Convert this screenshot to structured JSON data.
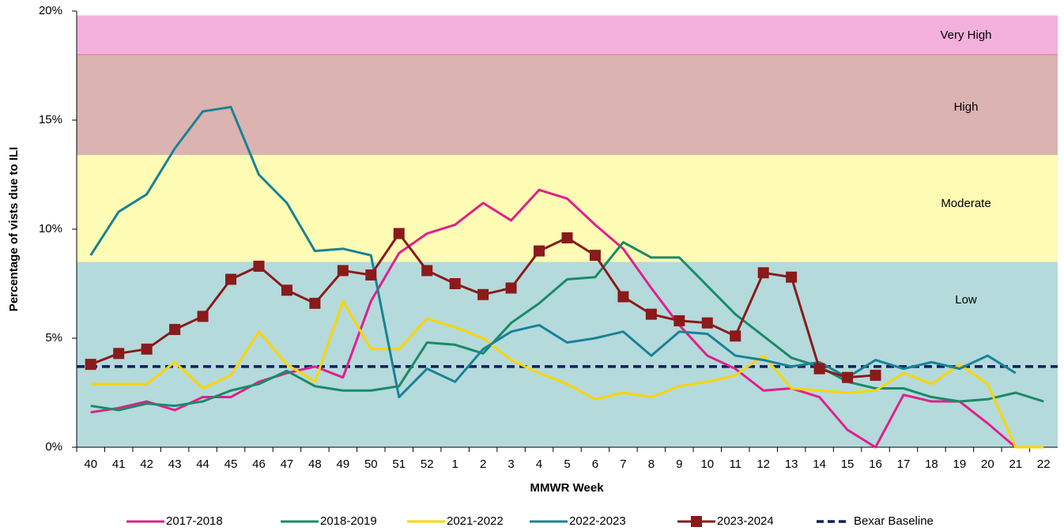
{
  "chart_data": {
    "type": "line",
    "x_label": "MMWR Week",
    "y_label": "Percentage of vists due to ILI",
    "categories": [
      "40",
      "41",
      "42",
      "43",
      "44",
      "45",
      "46",
      "47",
      "48",
      "49",
      "50",
      "51",
      "52",
      "1",
      "2",
      "3",
      "4",
      "5",
      "6",
      "7",
      "8",
      "9",
      "10",
      "11",
      "12",
      "13",
      "14",
      "15",
      "16",
      "17",
      "18",
      "19",
      "20",
      "21",
      "22"
    ],
    "ylim": [
      0,
      20
    ],
    "yticks": [
      {
        "value": 0,
        "label": "0%"
      },
      {
        "value": 5,
        "label": "5%"
      },
      {
        "value": 10,
        "label": "10%"
      },
      {
        "value": 15,
        "label": "15%"
      },
      {
        "value": 20,
        "label": "20%"
      }
    ],
    "grid": false,
    "legend": "bottom",
    "bands": [
      {
        "label": "Low",
        "from": 0,
        "to": 8.5,
        "color": "#b4dadc"
      },
      {
        "label": "Moderate",
        "from": 8.5,
        "to": 13.4,
        "color": "#fdfbb4"
      },
      {
        "label": "High",
        "from": 13.4,
        "to": 18,
        "color": "#dbb3b1"
      },
      {
        "label": "Very High",
        "from": 18,
        "to": 19.8,
        "color": "#f4b0dc"
      }
    ],
    "series": [
      {
        "name": "2017-2018",
        "color": "#e0208c",
        "values": [
          1.6,
          1.8,
          2.1,
          1.7,
          2.3,
          2.3,
          3.0,
          3.4,
          3.7,
          3.2,
          6.7,
          8.9,
          9.8,
          10.2,
          11.2,
          10.4,
          11.8,
          11.4,
          10.2,
          9.1,
          7.3,
          5.6,
          4.2,
          3.6,
          2.6,
          2.7,
          2.3,
          0.8,
          0,
          2.4,
          2.1,
          2.1,
          1.1,
          0,
          null
        ]
      },
      {
        "name": "2018-2019",
        "color": "#1a8a66",
        "values": [
          1.9,
          1.7,
          2.0,
          1.9,
          2.1,
          2.6,
          2.9,
          3.5,
          2.8,
          2.6,
          2.6,
          2.8,
          4.8,
          4.7,
          4.3,
          5.7,
          6.6,
          7.7,
          7.8,
          9.4,
          8.7,
          8.7,
          7.4,
          6.1,
          5.1,
          4.1,
          3.7,
          3.0,
          2.7,
          2.7,
          2.3,
          2.1,
          2.2,
          2.5,
          2.1
        ]
      },
      {
        "name": "2021-2022",
        "color": "#ffd500",
        "values": [
          2.9,
          2.9,
          2.9,
          3.9,
          2.7,
          3.3,
          5.3,
          3.8,
          3.0,
          6.7,
          4.5,
          4.5,
          5.9,
          5.5,
          5.0,
          4.0,
          3.4,
          2.9,
          2.2,
          2.5,
          2.3,
          2.8,
          3.0,
          3.3,
          4.2,
          2.7,
          2.6,
          2.5,
          2.6,
          3.4,
          2.9,
          3.8,
          2.9,
          0,
          0
        ]
      },
      {
        "name": "2022-2023",
        "color": "#1a8296",
        "values": [
          8.8,
          10.8,
          11.6,
          13.7,
          15.4,
          15.6,
          12.5,
          11.2,
          9.0,
          9.1,
          8.8,
          2.3,
          3.6,
          3.0,
          4.5,
          5.3,
          5.6,
          4.8,
          5.0,
          5.3,
          4.2,
          5.3,
          5.2,
          4.2,
          4.0,
          3.7,
          3.9,
          3.2,
          4.0,
          3.6,
          3.9,
          3.6,
          4.2,
          3.4,
          null
        ]
      },
      {
        "name": "2023-2024",
        "color": "#8b1a1a",
        "marker": "square",
        "values": [
          3.8,
          4.3,
          4.5,
          5.4,
          6.0,
          7.7,
          8.3,
          7.2,
          6.6,
          8.1,
          7.9,
          9.8,
          8.1,
          7.5,
          7.0,
          7.3,
          9.0,
          9.6,
          8.8,
          6.9,
          6.1,
          5.8,
          5.7,
          5.1,
          8.0,
          7.8,
          3.6,
          3.2,
          3.3,
          null,
          null,
          null,
          null,
          null,
          null
        ]
      }
    ],
    "baseline": {
      "name": "Bexar Baseline",
      "value": 3.7,
      "color": "#0d1f5c"
    }
  }
}
